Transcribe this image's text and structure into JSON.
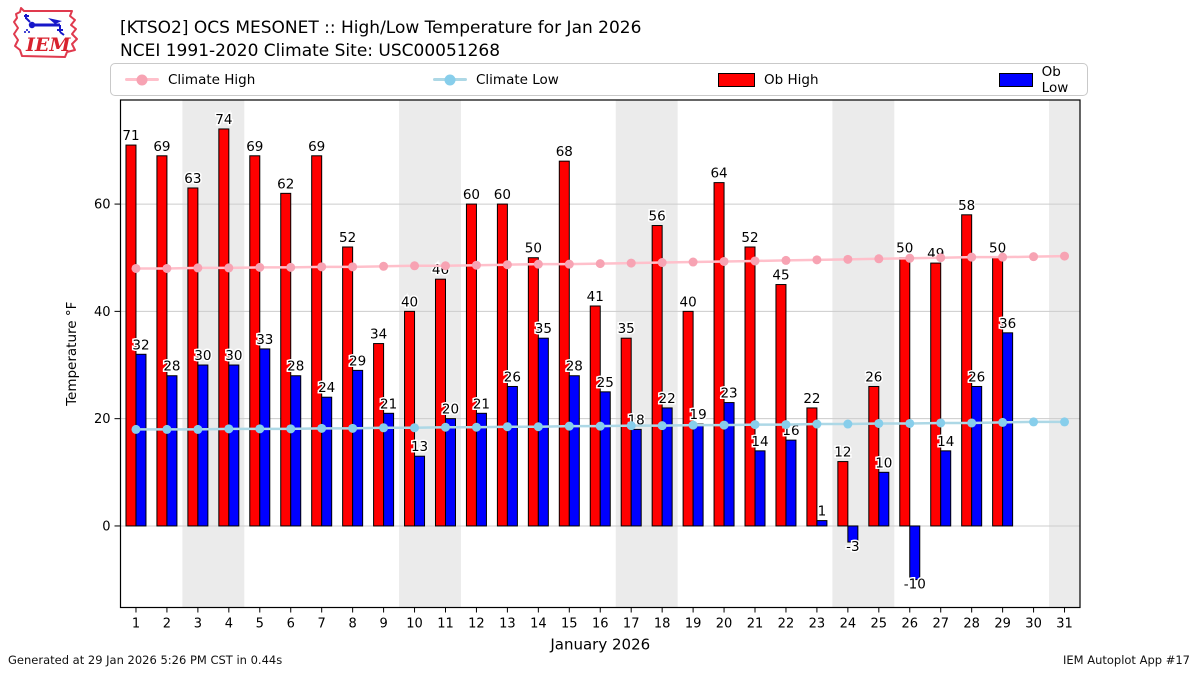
{
  "header": {
    "title_line1": "[KTSO2] OCS MESONET :: High/Low Temperature for Jan 2026",
    "title_line2": "NCEI 1991-2020 Climate Site: USC00051268",
    "logo_text": "IEM"
  },
  "legend": [
    {
      "label": "Climate High",
      "type": "line",
      "color": "#ffc0cb",
      "marker": "#f7a3b3"
    },
    {
      "label": "Climate Low",
      "type": "line",
      "color": "#add8e6",
      "marker": "#87ceeb"
    },
    {
      "label": "Ob High",
      "type": "bar",
      "color": "#ff0000"
    },
    {
      "label": "Ob Low",
      "type": "bar",
      "color": "#0000ff"
    }
  ],
  "footer": {
    "left": "Generated at 29 Jan 2026 5:26 PM CST in 0.44s",
    "right": "IEM Autoplot App #17"
  },
  "chart_data": {
    "type": "bar",
    "title": "[KTSO2] OCS MESONET :: High/Low Temperature for Jan 2026",
    "subtitle": "NCEI 1991-2020 Climate Site: USC00051268",
    "xlabel": "January 2026",
    "ylabel": "Temperature °F",
    "x": [
      1,
      2,
      3,
      4,
      5,
      6,
      7,
      8,
      9,
      10,
      11,
      12,
      13,
      14,
      15,
      16,
      17,
      18,
      19,
      20,
      21,
      22,
      23,
      24,
      25,
      26,
      27,
      28,
      29,
      30,
      31
    ],
    "yticks": [
      0,
      20,
      40,
      60
    ],
    "ylim": [
      -15.2,
      79.4
    ],
    "grid": true,
    "weekend_bands": [
      [
        2.5,
        4.5
      ],
      [
        9.5,
        11.5
      ],
      [
        16.5,
        18.5
      ],
      [
        23.5,
        25.5
      ],
      [
        30.5,
        31.5
      ]
    ],
    "band_color": "#ebebeb",
    "grid_color": "#cccccc",
    "series": [
      {
        "name": "Ob High",
        "type": "bar",
        "color": "#ff0000",
        "values": [
          71,
          69,
          63,
          74,
          69,
          62,
          69,
          52,
          34,
          40,
          46,
          60,
          60,
          50,
          68,
          41,
          35,
          56,
          40,
          64,
          52,
          45,
          22,
          12,
          26,
          50,
          49,
          58,
          50,
          null,
          null
        ]
      },
      {
        "name": "Ob Low",
        "type": "bar",
        "color": "#0000ff",
        "values": [
          32,
          28,
          30,
          30,
          33,
          28,
          24,
          29,
          21,
          13,
          20,
          21,
          26,
          35,
          28,
          25,
          18,
          22,
          19,
          23,
          14,
          16,
          1,
          -3,
          10,
          -10,
          14,
          26,
          36,
          null,
          null
        ]
      },
      {
        "name": "Climate High",
        "type": "line",
        "color": "#ffc0cb",
        "marker_color": "#f7a3b3",
        "values": [
          48.0,
          48.0,
          48.1,
          48.1,
          48.2,
          48.2,
          48.3,
          48.3,
          48.4,
          48.5,
          48.5,
          48.6,
          48.7,
          48.8,
          48.8,
          48.9,
          49.0,
          49.1,
          49.2,
          49.3,
          49.4,
          49.5,
          49.6,
          49.7,
          49.8,
          49.9,
          50.0,
          50.1,
          50.1,
          50.2,
          50.3
        ]
      },
      {
        "name": "Climate Low",
        "type": "line",
        "color": "#add8e6",
        "marker_color": "#87ceeb",
        "values": [
          18.0,
          18.0,
          18.0,
          18.1,
          18.1,
          18.1,
          18.2,
          18.2,
          18.3,
          18.3,
          18.4,
          18.4,
          18.5,
          18.5,
          18.6,
          18.6,
          18.7,
          18.7,
          18.8,
          18.8,
          18.9,
          18.9,
          19.0,
          19.0,
          19.1,
          19.1,
          19.2,
          19.2,
          19.3,
          19.4,
          19.4
        ]
      }
    ],
    "legend_position": "top"
  }
}
